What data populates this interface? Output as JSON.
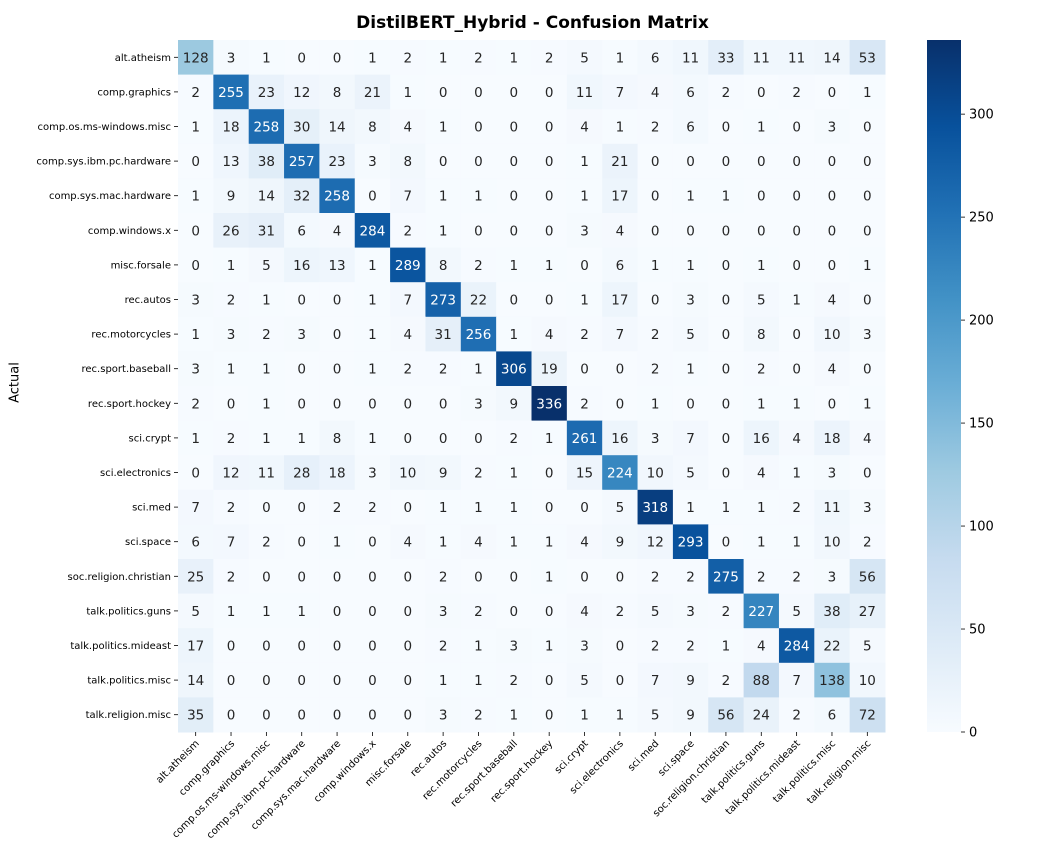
{
  "chart_data": {
    "type": "heatmap",
    "title": "DistilBERT_Hybrid - Confusion Matrix",
    "ylabel": "Actual",
    "xlabel": "",
    "colormap": "Blues",
    "color_range": [
      0,
      336
    ],
    "colorbar_ticks": [
      0,
      50,
      100,
      150,
      200,
      250,
      300
    ],
    "labels": [
      "alt.atheism",
      "comp.graphics",
      "comp.os.ms-windows.misc",
      "comp.sys.ibm.pc.hardware",
      "comp.sys.mac.hardware",
      "comp.windows.x",
      "misc.forsale",
      "rec.autos",
      "rec.motorcycles",
      "rec.sport.baseball",
      "rec.sport.hockey",
      "sci.crypt",
      "sci.electronics",
      "sci.med",
      "sci.space",
      "soc.religion.christian",
      "talk.politics.guns",
      "talk.politics.mideast",
      "talk.politics.misc",
      "talk.religion.misc"
    ],
    "matrix": [
      [
        128,
        3,
        1,
        0,
        0,
        1,
        2,
        1,
        2,
        1,
        2,
        5,
        1,
        6,
        11,
        33,
        11,
        11,
        14,
        53
      ],
      [
        2,
        255,
        23,
        12,
        8,
        21,
        1,
        0,
        0,
        0,
        0,
        11,
        7,
        4,
        6,
        2,
        0,
        2,
        0,
        1
      ],
      [
        1,
        18,
        258,
        30,
        14,
        8,
        4,
        1,
        0,
        0,
        0,
        4,
        1,
        2,
        6,
        0,
        1,
        0,
        3,
        0
      ],
      [
        0,
        13,
        38,
        257,
        23,
        3,
        8,
        0,
        0,
        0,
        0,
        1,
        21,
        0,
        0,
        0,
        0,
        0,
        0,
        0
      ],
      [
        1,
        9,
        14,
        32,
        258,
        0,
        7,
        1,
        1,
        0,
        0,
        1,
        17,
        0,
        1,
        1,
        0,
        0,
        0,
        0
      ],
      [
        0,
        26,
        31,
        6,
        4,
        284,
        2,
        1,
        0,
        0,
        0,
        3,
        4,
        0,
        0,
        0,
        0,
        0,
        0,
        0
      ],
      [
        0,
        1,
        5,
        16,
        13,
        1,
        289,
        8,
        2,
        1,
        1,
        0,
        6,
        1,
        1,
        0,
        1,
        0,
        0,
        1
      ],
      [
        3,
        2,
        1,
        0,
        0,
        1,
        7,
        273,
        22,
        0,
        0,
        1,
        17,
        0,
        3,
        0,
        5,
        1,
        4,
        0
      ],
      [
        1,
        3,
        2,
        3,
        0,
        1,
        4,
        31,
        256,
        1,
        4,
        2,
        7,
        2,
        5,
        0,
        8,
        0,
        10,
        3
      ],
      [
        3,
        1,
        1,
        0,
        0,
        1,
        2,
        2,
        1,
        306,
        19,
        0,
        0,
        2,
        1,
        0,
        2,
        0,
        4,
        0
      ],
      [
        2,
        0,
        1,
        0,
        0,
        0,
        0,
        0,
        3,
        9,
        336,
        2,
        0,
        1,
        0,
        0,
        1,
        1,
        0,
        1
      ],
      [
        1,
        2,
        1,
        1,
        8,
        1,
        0,
        0,
        0,
        2,
        1,
        261,
        16,
        3,
        7,
        0,
        16,
        4,
        18,
        4
      ],
      [
        0,
        12,
        11,
        28,
        18,
        3,
        10,
        9,
        2,
        1,
        0,
        15,
        224,
        10,
        5,
        0,
        4,
        1,
        3,
        0
      ],
      [
        7,
        2,
        0,
        0,
        2,
        2,
        0,
        1,
        1,
        1,
        0,
        0,
        5,
        318,
        1,
        1,
        1,
        2,
        11,
        3
      ],
      [
        6,
        7,
        2,
        0,
        1,
        0,
        4,
        1,
        4,
        1,
        1,
        4,
        9,
        12,
        293,
        0,
        1,
        1,
        10,
        2
      ],
      [
        25,
        2,
        0,
        0,
        0,
        0,
        0,
        2,
        0,
        0,
        1,
        0,
        0,
        2,
        2,
        275,
        2,
        2,
        3,
        56
      ],
      [
        5,
        1,
        1,
        1,
        0,
        0,
        0,
        3,
        2,
        0,
        0,
        4,
        2,
        5,
        3,
        2,
        227,
        5,
        38,
        27
      ],
      [
        17,
        0,
        0,
        0,
        0,
        0,
        0,
        2,
        1,
        3,
        1,
        3,
        0,
        2,
        2,
        1,
        4,
        284,
        22,
        5
      ],
      [
        14,
        0,
        0,
        0,
        0,
        0,
        0,
        1,
        1,
        2,
        0,
        5,
        0,
        7,
        9,
        2,
        88,
        7,
        138,
        10
      ],
      [
        35,
        0,
        0,
        0,
        0,
        0,
        0,
        3,
        2,
        1,
        0,
        1,
        1,
        5,
        9,
        56,
        24,
        2,
        6,
        72
      ]
    ]
  }
}
